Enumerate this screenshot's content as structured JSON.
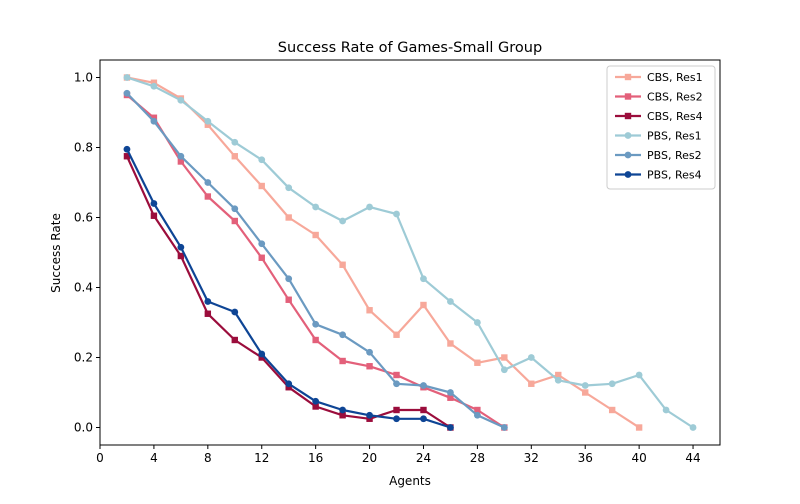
{
  "chart_data": {
    "type": "line",
    "title": "Success Rate of Games-Small Group",
    "xlabel": "Agents",
    "ylabel": "Success Rate",
    "xlim": [
      0,
      46
    ],
    "ylim": [
      -0.05,
      1.05
    ],
    "xticks": [
      0,
      4,
      8,
      12,
      16,
      20,
      24,
      28,
      32,
      36,
      40,
      44
    ],
    "yticks": [
      0.0,
      0.2,
      0.4,
      0.6,
      0.8,
      1.0
    ],
    "xtick_labels": [
      "0",
      "4",
      "8",
      "12",
      "16",
      "20",
      "24",
      "28",
      "32",
      "36",
      "40",
      "44"
    ],
    "ytick_labels": [
      "0.0",
      "0.2",
      "0.4",
      "0.6",
      "0.8",
      "1.0"
    ],
    "grid": false,
    "legend_position": "top-right",
    "series": [
      {
        "name": "CBS, Res1",
        "color": "#f7a89a",
        "marker": "square",
        "x": [
          2,
          4,
          6,
          8,
          10,
          12,
          14,
          16,
          18,
          20,
          22,
          24,
          26,
          28,
          30,
          32,
          34,
          36,
          38,
          40
        ],
        "y": [
          1.0,
          0.985,
          0.94,
          0.865,
          0.775,
          0.69,
          0.6,
          0.55,
          0.465,
          0.335,
          0.265,
          0.35,
          0.24,
          0.185,
          0.2,
          0.125,
          0.15,
          0.1,
          0.05,
          0.0
        ]
      },
      {
        "name": "CBS, Res2",
        "color": "#e3607a",
        "marker": "square",
        "x": [
          2,
          4,
          6,
          8,
          10,
          12,
          14,
          16,
          18,
          20,
          22,
          24,
          26,
          28,
          30
        ],
        "y": [
          0.95,
          0.885,
          0.76,
          0.66,
          0.59,
          0.485,
          0.365,
          0.25,
          0.19,
          0.175,
          0.15,
          0.115,
          0.085,
          0.05,
          0.0
        ]
      },
      {
        "name": "CBS, Res4",
        "color": "#9b0d3c",
        "marker": "square",
        "x": [
          2,
          4,
          6,
          8,
          10,
          12,
          14,
          16,
          18,
          20,
          22,
          24,
          26
        ],
        "y": [
          0.775,
          0.605,
          0.49,
          0.325,
          0.25,
          0.2,
          0.115,
          0.06,
          0.035,
          0.025,
          0.05,
          0.05,
          0.0
        ]
      },
      {
        "name": "PBS, Res1",
        "color": "#9ecbd6",
        "marker": "circle",
        "x": [
          2,
          4,
          6,
          8,
          10,
          12,
          14,
          16,
          18,
          20,
          22,
          24,
          26,
          28,
          30,
          32,
          34,
          36,
          38,
          40,
          42,
          44
        ],
        "y": [
          1.0,
          0.975,
          0.935,
          0.875,
          0.815,
          0.765,
          0.685,
          0.63,
          0.59,
          0.63,
          0.61,
          0.425,
          0.36,
          0.3,
          0.165,
          0.2,
          0.135,
          0.12,
          0.125,
          0.15,
          0.05,
          0.0
        ]
      },
      {
        "name": "PBS, Res2",
        "color": "#6b9ac1",
        "marker": "circle",
        "x": [
          2,
          4,
          6,
          8,
          10,
          12,
          14,
          16,
          18,
          20,
          22,
          24,
          26,
          28,
          30
        ],
        "y": [
          0.955,
          0.875,
          0.775,
          0.7,
          0.625,
          0.525,
          0.425,
          0.295,
          0.265,
          0.215,
          0.125,
          0.12,
          0.1,
          0.035,
          0.0
        ]
      },
      {
        "name": "PBS, Res4",
        "color": "#0e4595",
        "marker": "circle",
        "x": [
          2,
          4,
          6,
          8,
          10,
          12,
          14,
          16,
          18,
          20,
          22,
          24,
          26
        ],
        "y": [
          0.795,
          0.64,
          0.515,
          0.36,
          0.33,
          0.21,
          0.125,
          0.075,
          0.05,
          0.035,
          0.025,
          0.025,
          0.0
        ]
      }
    ]
  }
}
